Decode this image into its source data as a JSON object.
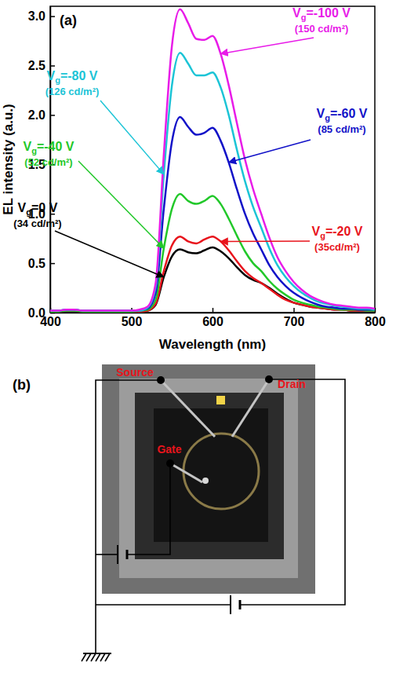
{
  "chart_data": {
    "type": "line",
    "panel_label": "(a)",
    "x_label": "Wavelength (nm)",
    "y_label": "EL intensity (a.u.)",
    "x": [
      400,
      410,
      420,
      430,
      440,
      450,
      460,
      470,
      480,
      490,
      500,
      510,
      520,
      530,
      540,
      550,
      560,
      570,
      580,
      590,
      600,
      610,
      620,
      630,
      640,
      650,
      660,
      670,
      680,
      690,
      700,
      710,
      720,
      730,
      740,
      750,
      760,
      770,
      780,
      790,
      800
    ],
    "xlim": [
      400,
      800
    ],
    "xticks": [
      400,
      500,
      600,
      700,
      800
    ],
    "ylim": [
      0,
      3.1
    ],
    "yticks": [
      {
        "value": 0,
        "label": "0.0"
      },
      {
        "value": 0.5,
        "label": "0.5"
      },
      {
        "value": 1,
        "label": "1.0"
      },
      {
        "value": 1.5,
        "label": "1.5"
      },
      {
        "value": 2,
        "label": "2.0"
      },
      {
        "value": 2.5,
        "label": "2.5"
      },
      {
        "value": 3,
        "label": "3.0"
      }
    ],
    "series": [
      {
        "name": "Vg=0 V",
        "luminance": "(34 cd/m²)",
        "color": "#000000",
        "values": [
          0.01,
          0.01,
          0.02,
          0.02,
          0.01,
          0.01,
          0.01,
          0.01,
          0.01,
          0.01,
          0.01,
          0.01,
          0.02,
          0.08,
          0.36,
          0.57,
          0.64,
          0.61,
          0.6,
          0.63,
          0.66,
          0.62,
          0.55,
          0.46,
          0.38,
          0.33,
          0.3,
          0.25,
          0.19,
          0.14,
          0.1,
          0.08,
          0.06,
          0.05,
          0.04,
          0.03,
          0.03,
          0.02,
          0.02,
          0.02,
          0.02
        ]
      },
      {
        "name": "Vg=-20 V",
        "luminance": "(35cd/m²)",
        "color": "#e8141c",
        "values": [
          0.01,
          0.01,
          0.02,
          0.02,
          0.01,
          0.01,
          0.01,
          0.01,
          0.01,
          0.01,
          0.01,
          0.01,
          0.02,
          0.09,
          0.42,
          0.68,
          0.77,
          0.72,
          0.7,
          0.74,
          0.77,
          0.72,
          0.63,
          0.52,
          0.42,
          0.35,
          0.3,
          0.24,
          0.18,
          0.13,
          0.1,
          0.08,
          0.06,
          0.05,
          0.04,
          0.03,
          0.03,
          0.02,
          0.02,
          0.02,
          0.02
        ]
      },
      {
        "name": "Vg=-40 V",
        "luminance": "(52 cd/m²)",
        "color": "#22c82a",
        "values": [
          0.01,
          0.01,
          0.02,
          0.02,
          0.01,
          0.01,
          0.01,
          0.01,
          0.01,
          0.01,
          0.01,
          0.02,
          0.03,
          0.13,
          0.65,
          1.05,
          1.2,
          1.13,
          1.1,
          1.13,
          1.18,
          1.1,
          0.95,
          0.78,
          0.62,
          0.5,
          0.42,
          0.32,
          0.24,
          0.18,
          0.13,
          0.1,
          0.08,
          0.06,
          0.05,
          0.04,
          0.03,
          0.03,
          0.03,
          0.02,
          0.02
        ]
      },
      {
        "name": "Vg=-60 V",
        "luminance": "(85 cd/m²)",
        "color": "#1212c8",
        "values": [
          0.02,
          0.02,
          0.03,
          0.03,
          0.02,
          0.02,
          0.02,
          0.02,
          0.02,
          0.02,
          0.02,
          0.02,
          0.04,
          0.2,
          1.05,
          1.73,
          1.98,
          1.88,
          1.8,
          1.82,
          1.87,
          1.74,
          1.52,
          1.25,
          1.0,
          0.8,
          0.64,
          0.48,
          0.36,
          0.27,
          0.2,
          0.15,
          0.11,
          0.08,
          0.06,
          0.05,
          0.04,
          0.04,
          0.03,
          0.03,
          0.03
        ]
      },
      {
        "name": "Vg=-80 V",
        "luminance": "(126 cd/m²)",
        "color": "#1cc4d6",
        "values": [
          0.02,
          0.02,
          0.03,
          0.03,
          0.02,
          0.02,
          0.02,
          0.02,
          0.02,
          0.02,
          0.02,
          0.02,
          0.05,
          0.26,
          1.4,
          2.3,
          2.63,
          2.52,
          2.4,
          2.4,
          2.43,
          2.28,
          2.0,
          1.65,
          1.33,
          1.07,
          0.86,
          0.65,
          0.48,
          0.36,
          0.27,
          0.2,
          0.15,
          0.11,
          0.09,
          0.07,
          0.06,
          0.05,
          0.04,
          0.04,
          0.03
        ]
      },
      {
        "name": "Vg=-100 V",
        "luminance": "(150 cd/m²)",
        "color": "#e81ce8",
        "values": [
          0.02,
          0.02,
          0.03,
          0.03,
          0.02,
          0.02,
          0.02,
          0.02,
          0.02,
          0.02,
          0.02,
          0.03,
          0.06,
          0.3,
          1.6,
          2.7,
          3.07,
          2.93,
          2.77,
          2.76,
          2.8,
          2.62,
          2.3,
          1.92,
          1.55,
          1.25,
          1.0,
          0.76,
          0.56,
          0.42,
          0.31,
          0.23,
          0.17,
          0.13,
          0.1,
          0.08,
          0.07,
          0.06,
          0.05,
          0.05,
          0.04
        ]
      }
    ]
  },
  "diagram": {
    "panel_label": "(b)",
    "terminals": [
      "Source",
      "Drain",
      "Gate"
    ]
  }
}
